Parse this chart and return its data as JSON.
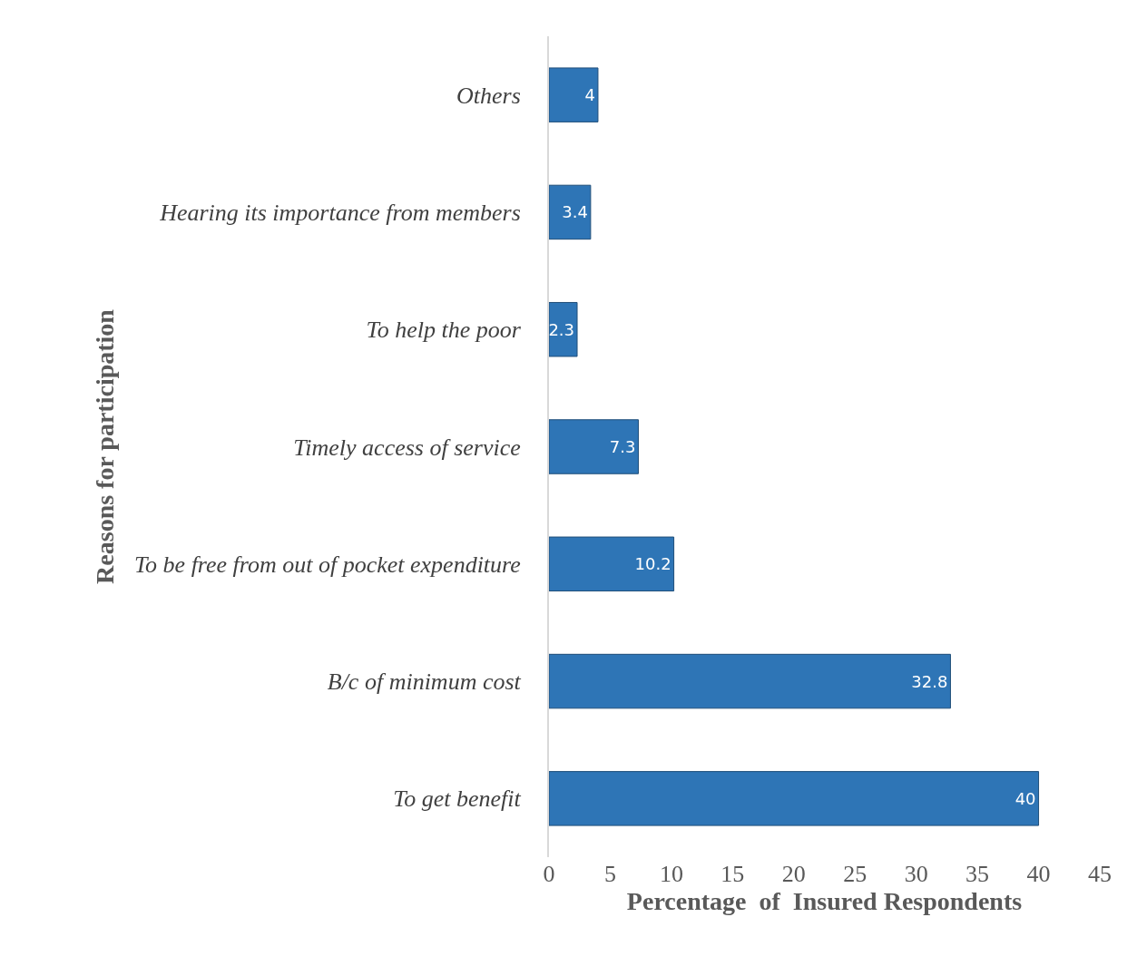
{
  "chart_data": {
    "type": "bar",
    "orientation": "horizontal",
    "xlabel": "Percentage  of  Insured Respondents",
    "ylabel": "Reasons for participation",
    "categories": [
      "Others",
      "Hearing its importance from members",
      "To help the poor",
      "Timely access of service",
      "To be free from out of pocket expenditure",
      "B/c of minimum cost",
      "To get benefit"
    ],
    "values": [
      4,
      3.4,
      2.3,
      7.3,
      10.2,
      32.8,
      40
    ],
    "color": "#2e75b6",
    "xlim": [
      0,
      45
    ],
    "xticks": [
      0,
      5,
      10,
      15,
      20,
      25,
      30,
      35,
      40,
      45
    ],
    "data_labels": true
  }
}
